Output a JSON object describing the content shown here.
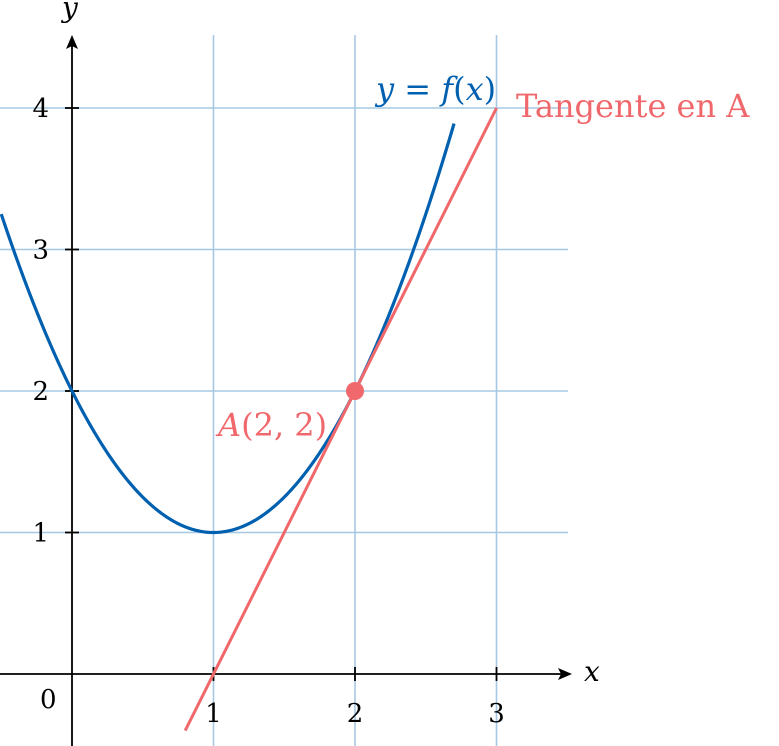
{
  "chart_data": {
    "type": "line",
    "xlabel": "x",
    "ylabel": "y",
    "xlim": [
      -0.5,
      3.5
    ],
    "ylim": [
      -0.5,
      4.5
    ],
    "x_ticks": [
      "1",
      "2",
      "3"
    ],
    "y_ticks": [
      "1",
      "2",
      "3",
      "4"
    ],
    "origin_label": "0",
    "grid": true,
    "colors": {
      "curve": "#0060b0",
      "tangent": "#f0686c",
      "grid": "#a6c8e4"
    },
    "series": [
      {
        "name": "y = f(x)",
        "label_parts": {
          "lhs": "y",
          "eq": " = ",
          "fn": "f",
          "open": "(",
          "var": "x",
          "close": ")"
        },
        "color": "#0060b0",
        "x": [
          -0.5,
          0,
          0.5,
          1,
          1.5,
          2,
          2.5,
          2.7
        ],
        "y": [
          3.25,
          2,
          1.25,
          1,
          1.25,
          2,
          3.25,
          3.89
        ]
      },
      {
        "name": "Tangente en A",
        "color": "#f0686c",
        "x": [
          0.8,
          3
        ],
        "y": [
          -0.4,
          4
        ]
      }
    ],
    "annotations": [
      {
        "label": "A(2, 2)",
        "label_parts": {
          "name": "A",
          "open": "(",
          "x": "2",
          "sep": ", ",
          "y": "2",
          "close": ")"
        },
        "x": 2,
        "y": 2,
        "color": "#f0686c"
      }
    ]
  }
}
